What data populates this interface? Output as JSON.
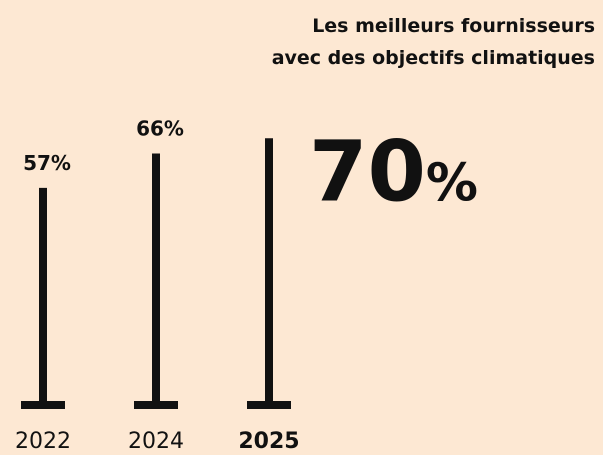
{
  "chart_data": {
    "type": "bar",
    "title": [
      "Les meilleurs fournisseurs",
      "avec des objectifs climatiques"
    ],
    "categories": [
      "2022",
      "2024",
      "2025"
    ],
    "values": [
      57,
      66,
      70
    ],
    "value_labels": [
      "57%",
      "66%",
      "70%"
    ],
    "color": "#111111"
  }
}
